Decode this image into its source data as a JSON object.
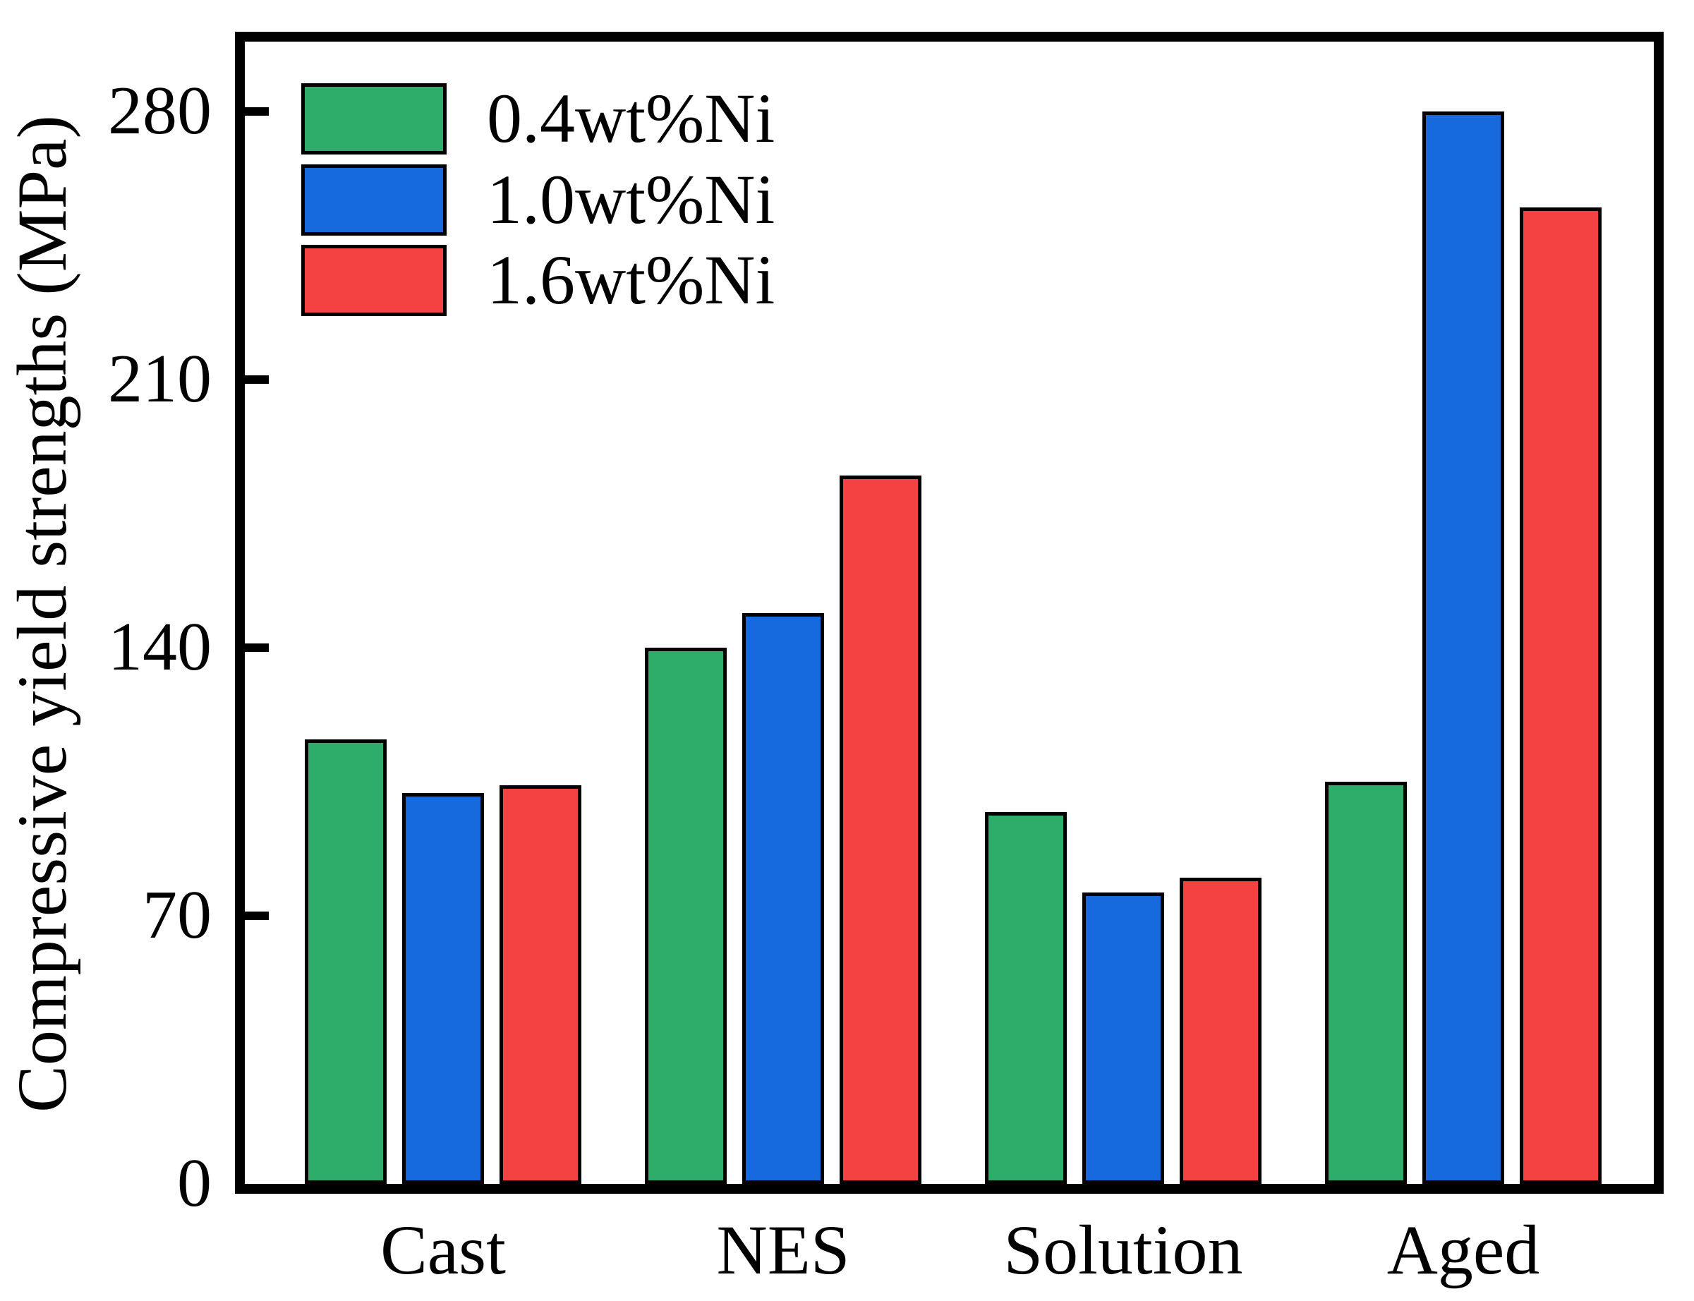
{
  "figure": {
    "background": "#ffffff",
    "axis_color": "#000000",
    "text_color": "#000000"
  },
  "chart_data": {
    "type": "bar",
    "title": "",
    "xlabel": "",
    "ylabel": "Compressive yield strengths (MPa)",
    "categories": [
      "Cast",
      "NES",
      "Solution",
      "Aged"
    ],
    "series": [
      {
        "name": "0.4wt%Ni",
        "color": "#2ead6a",
        "values": [
          116,
          140,
          97,
          105
        ]
      },
      {
        "name": "1.0wt%Ni",
        "color": "#176ade",
        "values": [
          102,
          149,
          76,
          280
        ]
      },
      {
        "name": "1.6wt%Ni",
        "color": "#f44242",
        "values": [
          104,
          185,
          80,
          255
        ]
      }
    ],
    "yticks": [
      0,
      70,
      140,
      210,
      280
    ],
    "ylim": [
      0,
      300
    ],
    "units": "MPa",
    "grid": false,
    "legend_position": "upper-left",
    "bar_border_color": "#000000"
  }
}
